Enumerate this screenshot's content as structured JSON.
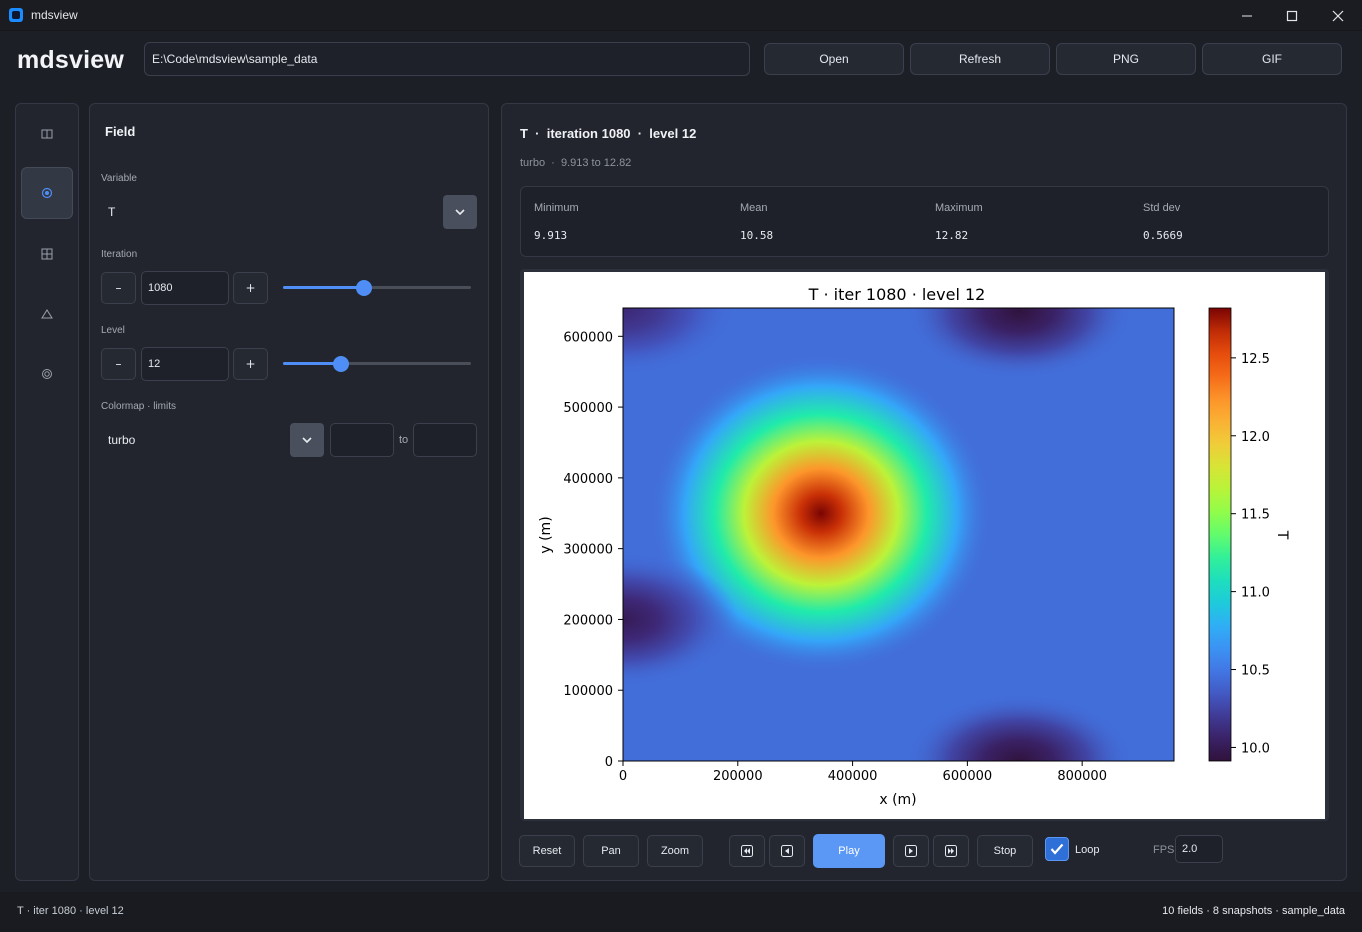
{
  "window": {
    "title": "mdsview"
  },
  "header": {
    "brand": "mdsview",
    "path": "E:\\Code\\mdsview\\sample_data",
    "buttons": {
      "open": "Open",
      "refresh": "Refresh",
      "png": "PNG",
      "gif": "GIF"
    }
  },
  "rail": {
    "items": [
      {
        "icon": "panel-icon",
        "active": false
      },
      {
        "icon": "target-icon",
        "active": true
      },
      {
        "icon": "grid-icon",
        "active": false
      },
      {
        "icon": "triangle-icon",
        "active": false
      },
      {
        "icon": "layers-icon",
        "active": false
      }
    ]
  },
  "field": {
    "title": "Field",
    "variable_label": "Variable",
    "variable_value": "T",
    "iteration_label": "Iteration",
    "iteration_value": "1080",
    "iteration_slider": 0.43,
    "level_label": "Level",
    "level_value": "12",
    "level_slider": 0.31,
    "minus": "–",
    "plus": "+",
    "colormap_label": "Colormap · limits",
    "colormap_value": "turbo",
    "limit_min": "",
    "limit_max": "",
    "to": "to"
  },
  "main": {
    "title": "T  ·  iteration 1080  ·  level 12",
    "subtitle": "turbo  ·  9.913 to 12.82",
    "stats": {
      "min_label": "Minimum",
      "min_value": "9.913",
      "mean_label": "Mean",
      "mean_value": "10.58",
      "max_label": "Maximum",
      "max_value": "12.82",
      "std_label": "Std dev",
      "std_value": "0.5669"
    }
  },
  "chart_data": {
    "type": "heatmap",
    "title": "T · iter 1080  ·  level 12",
    "xlabel": "x (m)",
    "ylabel": "y (m)",
    "xlim": [
      0,
      960000
    ],
    "ylim": [
      0,
      640000
    ],
    "xticks": [
      0,
      200000,
      400000,
      600000,
      800000
    ],
    "yticks": [
      0,
      100000,
      200000,
      300000,
      400000,
      500000,
      600000
    ],
    "colorbar": {
      "label": "T",
      "range": [
        9.913,
        12.82
      ],
      "ticks": [
        10.0,
        10.5,
        11.0,
        11.5,
        12.0,
        12.5
      ]
    },
    "colormap": "turbo",
    "background_value": 10.45,
    "features": [
      {
        "kind": "max",
        "x": 345000,
        "y": 350000,
        "value": 12.82
      },
      {
        "kind": "min",
        "x": 690000,
        "y": 635000,
        "value": 9.92
      },
      {
        "kind": "min",
        "x": 690000,
        "y": 0,
        "value": 9.92
      },
      {
        "kind": "min",
        "x": 0,
        "y": 200000,
        "value": 10.0
      },
      {
        "kind": "min",
        "x": 0,
        "y": 640000,
        "value": 10.1
      }
    ]
  },
  "controls": {
    "reset": "Reset",
    "pan": "Pan",
    "zoom": "Zoom",
    "first_icon": "skip-first-icon",
    "prev_icon": "step-back-icon",
    "play": "Play",
    "next_icon": "step-forward-icon",
    "last_icon": "skip-last-icon",
    "stop": "Stop",
    "loop_label": "Loop",
    "loop_checked": true,
    "fps_label": "FPS",
    "fps_value": "2.0"
  },
  "status": {
    "left": "T · iter 1080 · level 12",
    "right": "10 fields · 8 snapshots · sample_data"
  }
}
